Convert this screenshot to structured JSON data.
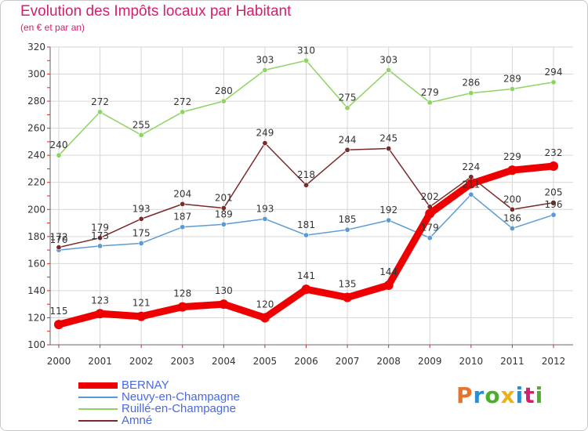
{
  "header": {
    "title": "Evolution des Impôts locaux par Habitant",
    "subtitle": "(en € et par an)"
  },
  "logo": {
    "text": "Proxiti",
    "letters": [
      "P",
      "r",
      "o",
      "x",
      "i",
      "t",
      "i"
    ],
    "colors": [
      "#e8732a",
      "#2a8fd0",
      "#4caf2a",
      "#e8b21a",
      "#2a8fd0",
      "#d2206e",
      "#4caf2a"
    ]
  },
  "chart_data": {
    "type": "line",
    "title": "Evolution des Impôts locaux par Habitant",
    "subtitle": "(en € et par an)",
    "x": [
      "2000",
      "2001",
      "2002",
      "2003",
      "2004",
      "2005",
      "2006",
      "2007",
      "2008",
      "2009",
      "2010",
      "2011",
      "2012"
    ],
    "ylim": [
      100,
      320
    ],
    "yticks": [
      100,
      120,
      140,
      160,
      180,
      200,
      220,
      240,
      260,
      280,
      300,
      320
    ],
    "series": [
      {
        "name": "BERNAY",
        "color": "#ee0000",
        "values": [
          115,
          123,
          121,
          128,
          130,
          120,
          141,
          135,
          144,
          197,
          219,
          229,
          232
        ]
      },
      {
        "name": "Neuvy-en-Champagne",
        "color": "#5b9bd5",
        "values": [
          170,
          173,
          175,
          187,
          189,
          193,
          181,
          185,
          192,
          179,
          211,
          186,
          196
        ]
      },
      {
        "name": "Ruillé-en-Champagne",
        "color": "#8ed462",
        "values": [
          240,
          272,
          255,
          272,
          280,
          303,
          310,
          275,
          303,
          279,
          286,
          289,
          294
        ]
      },
      {
        "name": "Amné",
        "color": "#7a2a2a",
        "values": [
          172,
          179,
          193,
          204,
          201,
          249,
          218,
          244,
          245,
          202,
          224,
          200,
          205
        ]
      }
    ],
    "labels": [
      [
        "115",
        "123",
        "121",
        "128",
        "130",
        "120",
        "141",
        "135",
        "144",
        "",
        "",
        "229",
        "232"
      ],
      [
        "170",
        "173",
        "175",
        "187",
        "189",
        "193",
        "181",
        "185",
        "192",
        "179",
        "211",
        "186",
        "196"
      ],
      [
        "240",
        "272",
        "255",
        "272",
        "280",
        "303",
        "310",
        "275",
        "303",
        "279",
        "286",
        "289",
        "294"
      ],
      [
        "172",
        "179",
        "193",
        "204",
        "201",
        "249",
        "218",
        "244",
        "245",
        "202",
        "224",
        "200",
        "205"
      ]
    ],
    "legend": [
      "BERNAY",
      "Neuvy-en-Champagne",
      "Ruillé-en-Champagne",
      "Amné"
    ],
    "grid": true
  }
}
